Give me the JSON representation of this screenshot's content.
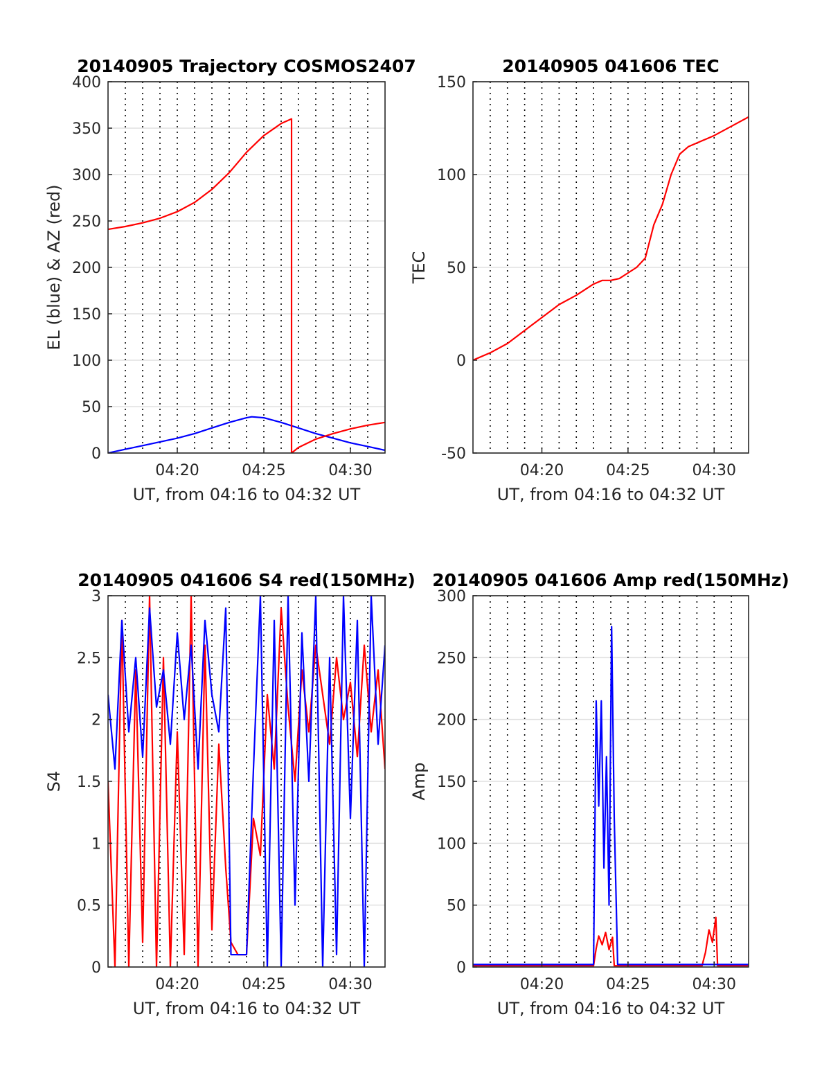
{
  "figure": {
    "background": "#ffffff",
    "colors": {
      "red": "#ff0000",
      "blue": "#0000ff",
      "grid": "#e0e0e0",
      "vline": "#000000",
      "axis": "#262626"
    },
    "time_axis": {
      "label": "UT, from 04:16 to 04:32 UT",
      "range": [
        "04:16",
        "04:32"
      ],
      "ticks": [
        "04:20",
        "04:25",
        "04:30"
      ],
      "dotted_minute_lines": [
        "04:17",
        "04:18",
        "04:19",
        "04:20",
        "04:21",
        "04:22",
        "04:23",
        "04:24",
        "04:25",
        "04:26",
        "04:27",
        "04:28",
        "04:29",
        "04:30",
        "04:31"
      ]
    }
  },
  "chart_data": [
    {
      "id": "trajectory",
      "type": "line",
      "title": "20140905 Trajectory COSMOS2407",
      "xlabel": "UT, from 04:16 to 04:32 UT",
      "ylabel": "EL (blue) & AZ (red)",
      "ylim": [
        0,
        400
      ],
      "yticks": [
        "0",
        "50",
        "100",
        "150",
        "200",
        "250",
        "300",
        "350",
        "400"
      ],
      "xticks": [
        "04:20",
        "04:25",
        "04:30"
      ],
      "grid": true,
      "series": [
        {
          "color": "#0000ff",
          "x": [
            "04:16",
            "04:17",
            "04:18",
            "04:19",
            "04:20",
            "04:21",
            "04:22",
            "04:23",
            "04:24",
            "04:24.3",
            "04:25",
            "04:26",
            "04:27",
            "04:28",
            "04:29",
            "04:30",
            "04:31",
            "04:32"
          ],
          "y": [
            0,
            4,
            8,
            12,
            16,
            21,
            27,
            33,
            38,
            39,
            38,
            33,
            27,
            21,
            16,
            11,
            7,
            3
          ]
        },
        {
          "color": "#ff0000",
          "x": [
            "04:16",
            "04:17",
            "04:18",
            "04:19",
            "04:20",
            "04:21",
            "04:22",
            "04:23",
            "04:24",
            "04:25",
            "04:26",
            "04:26.6",
            "04:26.6",
            "04:27",
            "04:28",
            "04:29",
            "04:30",
            "04:31",
            "04:32"
          ],
          "y": [
            241,
            244,
            248,
            253,
            260,
            270,
            284,
            302,
            324,
            342,
            355,
            360,
            0,
            6,
            15,
            21,
            26,
            30,
            33
          ]
        }
      ]
    },
    {
      "id": "tec",
      "type": "line",
      "title": "20140905 041606 TEC",
      "xlabel": "UT, from 04:16 to 04:32 UT",
      "ylabel": "TEC",
      "ylim": [
        -50,
        150
      ],
      "yticks": [
        "-50",
        "0",
        "50",
        "100",
        "150"
      ],
      "xticks": [
        "04:20",
        "04:25",
        "04:30"
      ],
      "grid": true,
      "series": [
        {
          "color": "#ff0000",
          "x": [
            "04:16",
            "04:17",
            "04:18",
            "04:19",
            "04:20",
            "04:21",
            "04:22",
            "04:23",
            "04:23.5",
            "04:24",
            "04:24.5",
            "04:25",
            "04:25.5",
            "04:26",
            "04:26.5",
            "04:27",
            "04:27.5",
            "04:28",
            "04:28.5",
            "04:29",
            "04:30",
            "04:31",
            "04:32"
          ],
          "y": [
            0,
            4,
            9,
            16,
            23,
            30,
            35,
            41,
            43,
            43,
            44,
            47,
            50,
            55,
            73,
            84,
            100,
            111,
            115,
            117,
            121,
            126,
            131
          ]
        }
      ]
    },
    {
      "id": "s4",
      "type": "line",
      "title": "20140905 041606 S4 red(150MHz)",
      "xlabel": "UT, from 04:16 to 04:32 UT",
      "ylabel": "S4",
      "ylim": [
        0,
        3
      ],
      "yticks": [
        "0",
        "0.5",
        "1",
        "1.5",
        "2",
        "2.5",
        "3"
      ],
      "xticks": [
        "04:20",
        "04:25",
        "04:30"
      ],
      "grid": true,
      "series": [
        {
          "color": "#ff0000",
          "x": [
            "04:16",
            "04:16.4",
            "04:16.8",
            "04:17.2",
            "04:17.6",
            "04:18",
            "04:18.4",
            "04:18.8",
            "04:19.2",
            "04:19.6",
            "04:20",
            "04:20.4",
            "04:20.8",
            "04:21.2",
            "04:21.6",
            "04:22",
            "04:22.4",
            "04:22.8",
            "04:23.1",
            "04:23.5",
            "04:24",
            "04:24.4",
            "04:24.8",
            "04:25.2",
            "04:25.6",
            "04:26",
            "04:26.4",
            "04:26.8",
            "04:27.2",
            "04:27.6",
            "04:28",
            "04:28.4",
            "04:28.8",
            "04:29.2",
            "04:29.6",
            "04:30",
            "04:30.4",
            "04:30.8",
            "04:31.2",
            "04:31.6",
            "04:32"
          ],
          "y": [
            1.5,
            0,
            2.8,
            0,
            2.4,
            0.2,
            3,
            0,
            2.5,
            0,
            1.9,
            0.1,
            3,
            0,
            2.6,
            0.3,
            1.8,
            0.8,
            0.2,
            0.1,
            0.1,
            1.2,
            0.9,
            2.2,
            1.6,
            2.9,
            2.1,
            1.5,
            2.4,
            1.9,
            2.6,
            2.2,
            1.8,
            2.5,
            2.0,
            2.3,
            1.7,
            2.6,
            1.9,
            2.4,
            1.6
          ]
        },
        {
          "color": "#0000ff",
          "x": [
            "04:16",
            "04:16.4",
            "04:16.8",
            "04:17.2",
            "04:17.6",
            "04:18",
            "04:18.4",
            "04:18.8",
            "04:19.2",
            "04:19.6",
            "04:20",
            "04:20.4",
            "04:20.8",
            "04:21.2",
            "04:21.6",
            "04:22",
            "04:22.4",
            "04:22.8",
            "04:23.1",
            "04:23.5",
            "04:24",
            "04:24.4",
            "04:24.8",
            "04:25.2",
            "04:25.6",
            "04:26",
            "04:26.4",
            "04:26.8",
            "04:27.2",
            "04:27.6",
            "04:28",
            "04:28.4",
            "04:28.8",
            "04:29.2",
            "04:29.6",
            "04:30",
            "04:30.4",
            "04:30.8",
            "04:31.2",
            "04:31.6",
            "04:32"
          ],
          "y": [
            2.2,
            1.6,
            2.8,
            1.9,
            2.5,
            1.7,
            2.9,
            2.1,
            2.4,
            1.8,
            2.7,
            2.0,
            2.6,
            1.6,
            2.8,
            2.2,
            1.9,
            2.9,
            0.1,
            0.1,
            0.1,
            1.6,
            3.0,
            0,
            2.8,
            0,
            3.0,
            0.5,
            2.7,
            1.5,
            3.0,
            0,
            2.5,
            0.1,
            3.0,
            1.2,
            2.8,
            0,
            3.0,
            1.8,
            2.6
          ]
        }
      ]
    },
    {
      "id": "amp",
      "type": "line",
      "title": "20140905 041606 Amp red(150MHz)",
      "xlabel": "UT, from 04:16 to 04:32 UT",
      "ylabel": "Amp",
      "ylim": [
        0,
        300
      ],
      "yticks": [
        "0",
        "50",
        "100",
        "150",
        "200",
        "250",
        "300"
      ],
      "xticks": [
        "04:20",
        "04:25",
        "04:30"
      ],
      "grid": true,
      "series": [
        {
          "color": "#ff0000",
          "x": [
            "04:16",
            "04:23.0",
            "04:23.15",
            "04:23.3",
            "04:23.5",
            "04:23.7",
            "04:23.9",
            "04:24.1",
            "04:24.2",
            "04:29.3",
            "04:29.5",
            "04:29.7",
            "04:29.9",
            "04:30.1",
            "04:30.2",
            "04:32"
          ],
          "y": [
            1,
            1,
            15,
            25,
            18,
            28,
            14,
            24,
            1,
            1,
            12,
            30,
            20,
            40,
            1,
            1
          ]
        },
        {
          "color": "#0000ff",
          "x": [
            "04:16",
            "04:17",
            "04:18",
            "04:19",
            "04:20",
            "04:21",
            "04:22",
            "04:23.0",
            "04:23.15",
            "04:23.3",
            "04:23.45",
            "04:23.6",
            "04:23.75",
            "04:23.9",
            "04:24.05",
            "04:24.2",
            "04:24.4",
            "04:25",
            "04:26",
            "04:27",
            "04:28",
            "04:29",
            "04:30",
            "04:31",
            "04:32"
          ],
          "y": [
            2,
            2,
            2,
            2,
            2,
            2,
            2,
            2,
            215,
            130,
            215,
            80,
            170,
            50,
            275,
            120,
            2,
            2,
            2,
            2,
            2,
            2,
            2,
            2,
            2
          ]
        }
      ]
    }
  ]
}
